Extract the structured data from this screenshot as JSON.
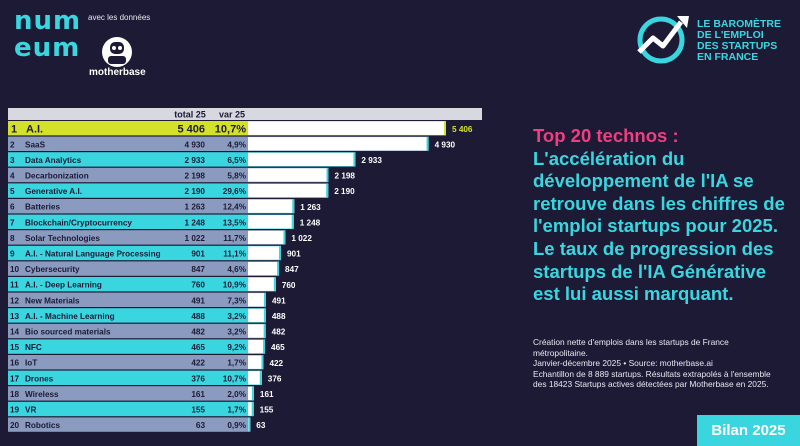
{
  "logo": {
    "lines": [
      "num",
      "eum"
    ]
  },
  "partner": {
    "prefix": "avec les données",
    "name": "motherbase"
  },
  "report": {
    "lines": [
      "LE BAROMÈTRE",
      "DE L'EMPLOI",
      "DES STARTUPS",
      "EN FRANCE"
    ]
  },
  "headline": {
    "highlight": "Top 20 technos :",
    "body": "L'accélération du développement de l'IA se retrouve dans les chiffres de l'emploi startups pour 2025. Le taux de progression des startups de l'IA Générative est lui aussi marquant."
  },
  "notes": [
    "Création nette d'emplois dans les startups de France métropolitaine.",
    "Janvier-décembre 2025 • Source: motherbase.ai",
    "Echantillon de 8 889 startups. Résultats extrapolés à l'ensemble des 18423 Startups actives détectées par Motherbase en 2025."
  ],
  "badge": "Bilan 2025",
  "colors": {
    "background": "#1c1a35",
    "cyan": "#3ad6e0",
    "pink": "#ef3e82",
    "lime": "#d4e12a"
  },
  "chart_data": {
    "type": "bar",
    "orientation": "horizontal",
    "columns": [
      "total 25",
      "var 25"
    ],
    "categories": [
      "A.I.",
      "SaaS",
      "Data Analytics",
      "Decarbonization",
      "Generative A.I.",
      "Batteries",
      "Blockchain/Cryptocurrency",
      "Solar Technologies",
      "A.I. - Natural Language Processing",
      "Cybersecurity",
      "A.I. - Deep Learning",
      "New Materials",
      "A.I. - Machine Learning",
      "Bio sourced materials",
      "NFC",
      "IoT",
      "Drones",
      "Wireless",
      "VR",
      "Robotics"
    ],
    "values": [
      5406,
      4930,
      2933,
      2198,
      2190,
      1263,
      1248,
      1022,
      901,
      847,
      760,
      491,
      488,
      482,
      465,
      422,
      376,
      161,
      155,
      63
    ],
    "value_labels": [
      "5 406",
      "4 930",
      "2 933",
      "2 198",
      "2 190",
      "1 263",
      "1 248",
      "1 022",
      "901",
      "847",
      "760",
      "491",
      "488",
      "482",
      "465",
      "422",
      "376",
      "161",
      "155",
      "63"
    ],
    "variations": [
      "10,7%",
      "4,9%",
      "6,5%",
      "5,8%",
      "29,6%",
      "12,4%",
      "13,5%",
      "11,7%",
      "11,1%",
      "4,6%",
      "10,9%",
      "7,3%",
      "3,2%",
      "3,2%",
      "9,2%",
      "1,7%",
      "10,7%",
      "2,0%",
      "1,7%",
      "0,9%"
    ],
    "highlight_index": 0
  }
}
